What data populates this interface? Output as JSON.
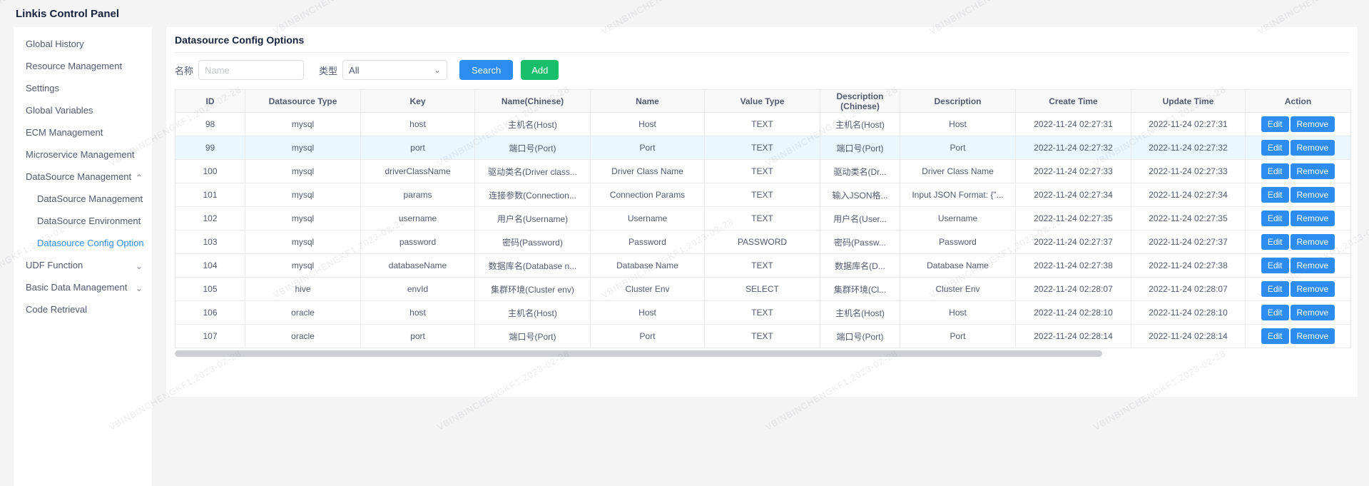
{
  "app": {
    "title": "Linkis Control Panel"
  },
  "watermark": {
    "text": "VBINBINCHENGKF1,2023-02-28"
  },
  "sidebar": {
    "items": [
      {
        "label": "Global History",
        "level": 0
      },
      {
        "label": "Resource Management",
        "level": 0
      },
      {
        "label": "Settings",
        "level": 0
      },
      {
        "label": "Global Variables",
        "level": 0
      },
      {
        "label": "ECM Management",
        "level": 0
      },
      {
        "label": "Microservice Management",
        "level": 0
      },
      {
        "label": "DataSource Management",
        "level": 0,
        "chevron": "up"
      },
      {
        "label": "DataSource Management",
        "level": 1
      },
      {
        "label": "DataSource Environment",
        "level": 1
      },
      {
        "label": "Datasource Config Option",
        "level": 1,
        "active": true
      },
      {
        "label": "UDF Function",
        "level": 0,
        "chevron": "down"
      },
      {
        "label": "Basic Data Management",
        "level": 0,
        "chevron": "down"
      },
      {
        "label": "Code Retrieval",
        "level": 0
      }
    ]
  },
  "main": {
    "title": "Datasource Config Options",
    "search_form": {
      "name_label": "名称",
      "name_placeholder": "Name",
      "type_label": "类型",
      "type_value": "All",
      "search_button": "Search",
      "add_button": "Add"
    },
    "table": {
      "columns": [
        "ID",
        "Datasource Type",
        "Key",
        "Name(Chinese)",
        "Name",
        "Value Type",
        "Description (Chinese)",
        "Description",
        "Create Time",
        "Update Time",
        "Action"
      ],
      "action_buttons": [
        "Edit",
        "Remove"
      ],
      "highlighted_row_id": "99",
      "rows": [
        [
          "98",
          "mysql",
          "host",
          "主机名(Host)",
          "Host",
          "TEXT",
          "主机名(Host)",
          "Host",
          "2022-11-24 02:27:31",
          "2022-11-24 02:27:31"
        ],
        [
          "99",
          "mysql",
          "port",
          "端口号(Port)",
          "Port",
          "TEXT",
          "端口号(Port)",
          "Port",
          "2022-11-24 02:27:32",
          "2022-11-24 02:27:32"
        ],
        [
          "100",
          "mysql",
          "driverClassName",
          "驱动类名(Driver class...",
          "Driver Class Name",
          "TEXT",
          "驱动类名(Dr...",
          "Driver Class Name",
          "2022-11-24 02:27:33",
          "2022-11-24 02:27:33"
        ],
        [
          "101",
          "mysql",
          "params",
          "连接参数(Connection...",
          "Connection Params",
          "TEXT",
          "输入JSON格...",
          "Input JSON Format: {\"...",
          "2022-11-24 02:27:34",
          "2022-11-24 02:27:34"
        ],
        [
          "102",
          "mysql",
          "username",
          "用户名(Username)",
          "Username",
          "TEXT",
          "用户名(User...",
          "Username",
          "2022-11-24 02:27:35",
          "2022-11-24 02:27:35"
        ],
        [
          "103",
          "mysql",
          "password",
          "密码(Password)",
          "Password",
          "PASSWORD",
          "密码(Passw...",
          "Password",
          "2022-11-24 02:27:37",
          "2022-11-24 02:27:37"
        ],
        [
          "104",
          "mysql",
          "databaseName",
          "数据库名(Database n...",
          "Database Name",
          "TEXT",
          "数据库名(D...",
          "Database Name",
          "2022-11-24 02:27:38",
          "2022-11-24 02:27:38"
        ],
        [
          "105",
          "hive",
          "envId",
          "集群环境(Cluster env)",
          "Cluster Env",
          "SELECT",
          "集群环境(Cl...",
          "Cluster Env",
          "2022-11-24 02:28:07",
          "2022-11-24 02:28:07"
        ],
        [
          "106",
          "oracle",
          "host",
          "主机名(Host)",
          "Host",
          "TEXT",
          "主机名(Host)",
          "Host",
          "2022-11-24 02:28:10",
          "2022-11-24 02:28:10"
        ],
        [
          "107",
          "oracle",
          "port",
          "端口号(Port)",
          "Port",
          "TEXT",
          "端口号(Port)",
          "Port",
          "2022-11-24 02:28:14",
          "2022-11-24 02:28:14"
        ]
      ]
    }
  },
  "colors": {
    "primary": "#2d8cf0",
    "success": "#19be6b",
    "row_highlight": "#ebf7ff"
  }
}
